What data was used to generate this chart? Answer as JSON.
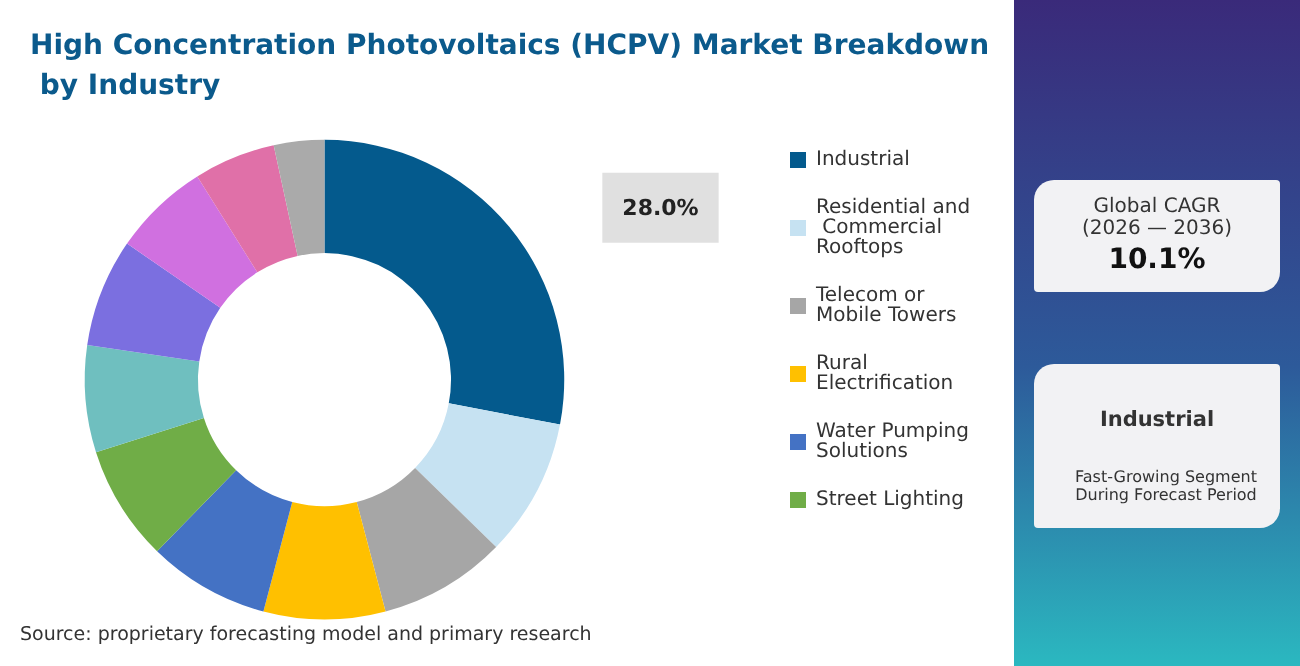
{
  "chart_data": {
    "type": "donut",
    "title": "High Concentration Photovoltaics (HCPV) Market Breakdown by Industry",
    "categories": [
      "Industrial",
      "Residential and Commercial Rooftops",
      "Telecom or Mobile Towers",
      "Rural Electrification",
      "Water Pumping Solutions",
      "Street Lighting",
      null,
      null,
      null,
      null,
      null
    ],
    "values": [
      28.0,
      9.3,
      8.6,
      8.2,
      8.2,
      7.8,
      7.2,
      7.3,
      6.5,
      5.5,
      3.4
    ],
    "colors": [
      "#045a8d",
      "#c6e2f2",
      "#a6a6a6",
      "#ffc000",
      "#4472c4",
      "#70ad47",
      "#6fbfbf",
      "#7b6fe0",
      "#d070e0",
      "#e070a8",
      "#aaaaaa"
    ],
    "value_labels": [
      "28.0%",
      null,
      null,
      null,
      null,
      null,
      null,
      null,
      null,
      null,
      null
    ],
    "legend": "right",
    "annotations": [
      "Source: proprietary forecasting model and primary research",
      "Global CAGR (2026 — 2036)",
      "10.1%",
      "Industrial",
      "Fast-Growing Segment During Forecast Period"
    ]
  }
}
